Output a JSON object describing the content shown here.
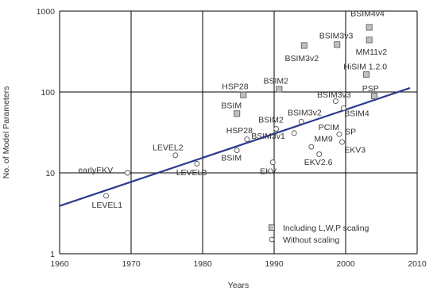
{
  "chart_data": {
    "type": "scatter",
    "title": "",
    "xlabel": "Years",
    "ylabel": "No. of Model Parameters",
    "xlim": [
      1960,
      2010
    ],
    "ylim": [
      1,
      1000
    ],
    "yscale": "log",
    "grid": true,
    "x_ticks": [
      "1960",
      "1970",
      "1980",
      "1990",
      "2000",
      "2010"
    ],
    "y_ticks": [
      "1",
      "10",
      "100",
      "1000"
    ],
    "colors": {
      "trend": "#2b3a8c",
      "grid": "#000000",
      "marker_fill": "#bfbfbf",
      "marker_stroke": "#555555",
      "text": "#333333"
    },
    "legend": {
      "placement": "bottom-center",
      "entries": [
        {
          "label": "Including L,W,P scaling",
          "marker": "square"
        },
        {
          "label": "Without scaling",
          "marker": "circle"
        }
      ]
    },
    "series": [
      {
        "name": "Including L,W,P scaling",
        "marker": "square",
        "points": [
          {
            "x": 1985.7,
            "y": 92
          },
          {
            "x": 1984.8,
            "y": 54
          },
          {
            "x": 1990.7,
            "y": 108
          },
          {
            "x": 1994.2,
            "y": 375
          },
          {
            "x": 1998.8,
            "y": 385
          },
          {
            "x": 2003.3,
            "y": 630
          },
          {
            "x": 2003.3,
            "y": 440
          },
          {
            "x": 2002.9,
            "y": 165
          },
          {
            "x": 2004.0,
            "y": 89
          }
        ]
      },
      {
        "name": "Without scaling",
        "marker": "circle",
        "points": [
          {
            "x": 1966.5,
            "y": 5.2
          },
          {
            "x": 1969.5,
            "y": 10
          },
          {
            "x": 1976.2,
            "y": 16.5
          },
          {
            "x": 1979.2,
            "y": 13
          },
          {
            "x": 1984.8,
            "y": 19
          },
          {
            "x": 1986.2,
            "y": 26
          },
          {
            "x": 1990.3,
            "y": 35
          },
          {
            "x": 1989.8,
            "y": 13.5
          },
          {
            "x": 1993.8,
            "y": 43
          },
          {
            "x": 1992.8,
            "y": 31
          },
          {
            "x": 1995.2,
            "y": 21
          },
          {
            "x": 1996.3,
            "y": 17
          },
          {
            "x": 1999.1,
            "y": 30
          },
          {
            "x": 1998.6,
            "y": 77
          },
          {
            "x": 1999.7,
            "y": 63
          },
          {
            "x": 1999.5,
            "y": 24
          }
        ]
      }
    ],
    "trend_line": {
      "x": [
        1960,
        2009
      ],
      "y": [
        3.9,
        112
      ]
    },
    "annotations": [
      {
        "text": "LEVEL1",
        "x": 1964.5,
        "y": 3.7,
        "anchor": "start"
      },
      {
        "text": "earlyEKV",
        "x": 1962.6,
        "y": 10,
        "anchor": "start"
      },
      {
        "text": "LEVEL2",
        "x": 1973.0,
        "y": 19,
        "anchor": "start"
      },
      {
        "text": "LEVEL3",
        "x": 1976.3,
        "y": 9.3,
        "anchor": "start"
      },
      {
        "text": "BSIM",
        "x": 1982.6,
        "y": 14.2,
        "anchor": "start"
      },
      {
        "text": "HSP28",
        "x": 1983.3,
        "y": 31,
        "anchor": "start"
      },
      {
        "text": "BSIM2",
        "x": 1987.8,
        "y": 42,
        "anchor": "start"
      },
      {
        "text": "BSIM3v1",
        "x": 1986.8,
        "y": 26.5,
        "anchor": "start"
      },
      {
        "text": "EKV",
        "x": 1988.0,
        "y": 9.7,
        "anchor": "start"
      },
      {
        "text": "BSIM3v2",
        "x": 1991.9,
        "y": 51.5,
        "anchor": "start"
      },
      {
        "text": "PCIM",
        "x": 1996.2,
        "y": 34,
        "anchor": "start"
      },
      {
        "text": "MM9",
        "x": 1995.6,
        "y": 24.5,
        "anchor": "start"
      },
      {
        "text": "EKV2.6",
        "x": 1994.2,
        "y": 12.6,
        "anchor": "start"
      },
      {
        "text": "SP",
        "x": 1999.9,
        "y": 30,
        "anchor": "start"
      },
      {
        "text": "EKV3",
        "x": 1999.8,
        "y": 17.7,
        "anchor": "start"
      },
      {
        "text": "BSIM4",
        "x": 1999.8,
        "y": 50,
        "anchor": "start"
      },
      {
        "text": "BSIM3v3",
        "x": 1996.0,
        "y": 85,
        "anchor": "start"
      },
      {
        "text": "PSP",
        "x": 2002.3,
        "y": 102,
        "anchor": "start"
      },
      {
        "text": "HSP28",
        "x": 1982.7,
        "y": 108,
        "anchor": "start"
      },
      {
        "text": "BSIM",
        "x": 1982.6,
        "y": 63,
        "anchor": "start"
      },
      {
        "text": "BSIM2",
        "x": 1988.5,
        "y": 127,
        "anchor": "start"
      },
      {
        "text": "BSIM3v2",
        "x": 1991.5,
        "y": 240,
        "anchor": "start"
      },
      {
        "text": "BSIM3v3",
        "x": 1996.3,
        "y": 460,
        "anchor": "start"
      },
      {
        "text": "BSIM4v4",
        "x": 2000.7,
        "y": 860,
        "anchor": "start"
      },
      {
        "text": "MM11v2",
        "x": 2001.4,
        "y": 290,
        "anchor": "start"
      },
      {
        "text": "HiSIM 1.2.0",
        "x": 1999.7,
        "y": 190,
        "anchor": "start"
      }
    ]
  }
}
